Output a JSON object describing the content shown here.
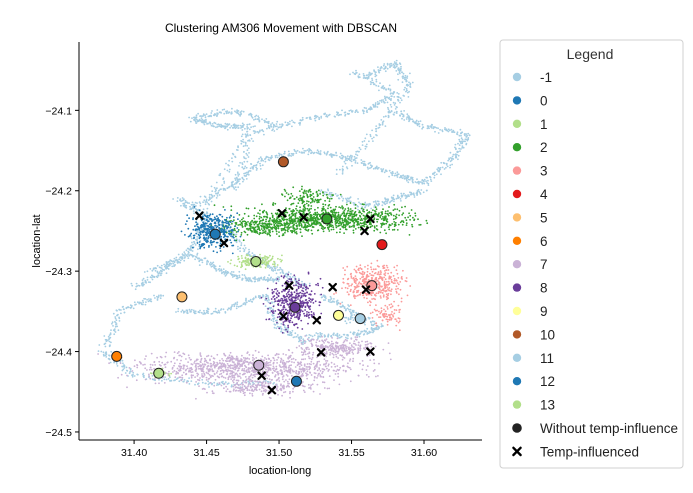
{
  "chart_data": {
    "type": "scatter",
    "title": "Clustering AM306 Movement with DBSCAN",
    "xlabel": "location-long",
    "ylabel": "location-lat",
    "xlim": [
      31.362,
      31.64
    ],
    "ylim": [
      -24.51,
      -24.015
    ],
    "xticks": [
      31.4,
      31.45,
      31.5,
      31.55,
      31.6
    ],
    "xtick_labels": [
      "31.40",
      "31.45",
      "31.50",
      "31.55",
      "31.60"
    ],
    "yticks": [
      -24.1,
      -24.2,
      -24.3,
      -24.4,
      -24.5
    ],
    "ytick_labels": [
      "−24.1",
      "−24.2",
      "−24.3",
      "−24.4",
      "−24.5"
    ],
    "grid": false,
    "legend_position": "outside-right",
    "legend_title": "Legend",
    "clusters": [
      {
        "label": "-1",
        "color": "#a6cee3",
        "centroid": null
      },
      {
        "label": "0",
        "color": "#1f78b4",
        "centroid": [
          31.456,
          -24.254
        ]
      },
      {
        "label": "1",
        "color": "#b2df8a",
        "centroid": [
          31.484,
          -24.288
        ]
      },
      {
        "label": "2",
        "color": "#33a02c",
        "centroid": [
          31.533,
          -24.235
        ]
      },
      {
        "label": "3",
        "color": "#fb9a99",
        "centroid": [
          31.564,
          -24.318
        ]
      },
      {
        "label": "4",
        "color": "#e31a1c",
        "centroid": [
          31.571,
          -24.267
        ]
      },
      {
        "label": "5",
        "color": "#fdbf6f",
        "centroid": [
          31.433,
          -24.332
        ]
      },
      {
        "label": "6",
        "color": "#ff7f00",
        "centroid": [
          31.388,
          -24.406
        ]
      },
      {
        "label": "7",
        "color": "#cab2d6",
        "centroid": [
          31.486,
          -24.417
        ]
      },
      {
        "label": "8",
        "color": "#6a3d9a",
        "centroid": [
          31.511,
          -24.345
        ]
      },
      {
        "label": "9",
        "color": "#ffff99",
        "centroid": [
          31.541,
          -24.355
        ]
      },
      {
        "label": "10",
        "color": "#b15928",
        "centroid": [
          31.503,
          -24.164
        ]
      },
      {
        "label": "11",
        "color": "#a6cee3",
        "centroid": [
          31.556,
          -24.359
        ]
      },
      {
        "label": "12",
        "color": "#1f78b4",
        "centroid": [
          31.512,
          -24.437
        ]
      },
      {
        "label": "13",
        "color": "#b2df8a",
        "centroid": [
          31.417,
          -24.427
        ]
      }
    ],
    "temp_influenced": [
      [
        31.445,
        -24.231
      ],
      [
        31.462,
        -24.265
      ],
      [
        31.502,
        -24.228
      ],
      [
        31.517,
        -24.233
      ],
      [
        31.559,
        -24.25
      ],
      [
        31.563,
        -24.235
      ],
      [
        31.507,
        -24.318
      ],
      [
        31.537,
        -24.32
      ],
      [
        31.503,
        -24.356
      ],
      [
        31.526,
        -24.361
      ],
      [
        31.56,
        -24.323
      ],
      [
        31.529,
        -24.401
      ],
      [
        31.563,
        -24.4
      ],
      [
        31.488,
        -24.43
      ],
      [
        31.495,
        -24.448
      ]
    ],
    "marker_legend": [
      {
        "label": "Without temp-influence",
        "marker": "circle",
        "color": "#222222"
      },
      {
        "label": "Temp-influenced",
        "marker": "x",
        "color": "#000000"
      }
    ]
  }
}
